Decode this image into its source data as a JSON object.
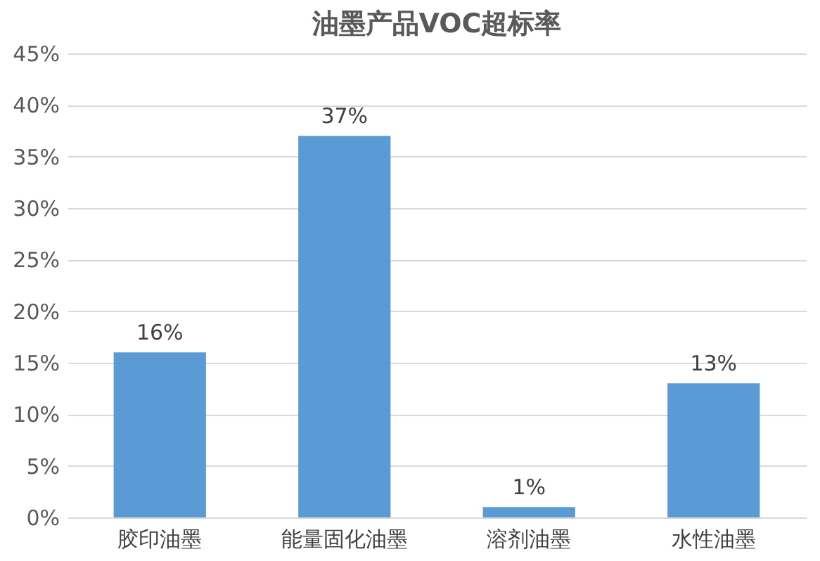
{
  "chart_data": {
    "type": "bar",
    "title": "油墨产品VOC超标率",
    "categories": [
      "胶印油墨",
      "能量固化油墨",
      "溶剂油墨",
      "水性油墨"
    ],
    "values": [
      16,
      37,
      1,
      13
    ],
    "value_labels": [
      "16%",
      "37%",
      "1%",
      "13%"
    ],
    "color": "#5b9bd5",
    "ylim": [
      0,
      45
    ],
    "yticks": [
      {
        "value": 0,
        "label": "0%"
      },
      {
        "value": 5,
        "label": "5%"
      },
      {
        "value": 10,
        "label": "10%"
      },
      {
        "value": 15,
        "label": "15%"
      },
      {
        "value": 20,
        "label": "20%"
      },
      {
        "value": 25,
        "label": "25%"
      },
      {
        "value": 30,
        "label": "30%"
      },
      {
        "value": 35,
        "label": "35%"
      },
      {
        "value": 40,
        "label": "40%"
      },
      {
        "value": 45,
        "label": "45%"
      }
    ],
    "grid": "y"
  }
}
